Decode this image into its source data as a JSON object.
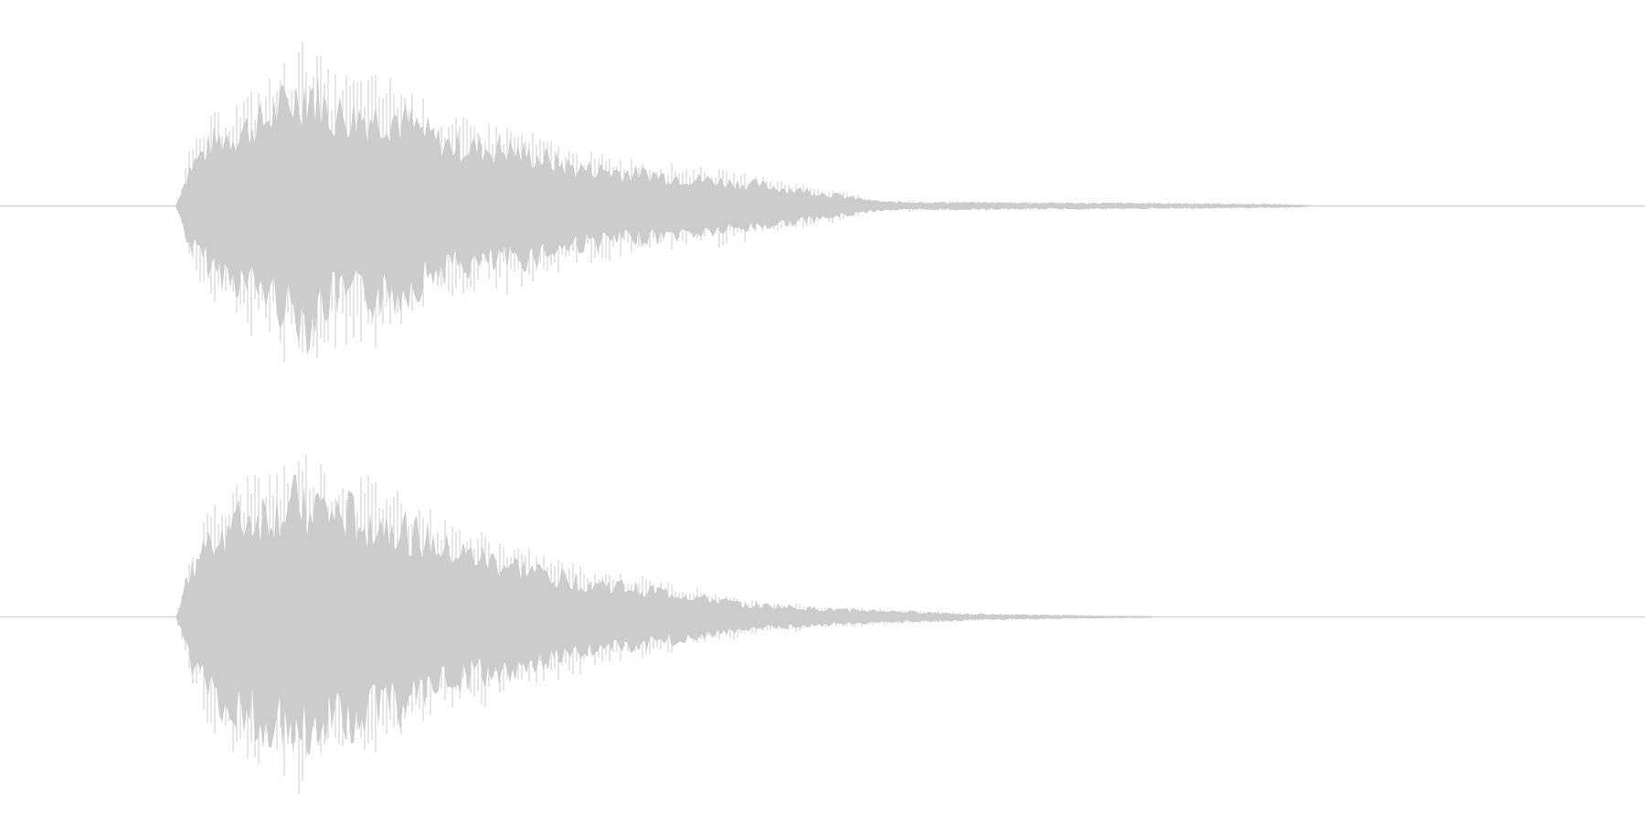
{
  "chart_data": {
    "type": "area",
    "title": "",
    "xlabel": "",
    "ylabel": "",
    "grid": false,
    "legend": "none",
    "colors": {
      "waveform": "#cccccc",
      "baseline": "#c8c8c8",
      "background": "#ffffff"
    },
    "x_range": [
      0,
      1
    ],
    "y_range": [
      -1,
      1
    ],
    "series": [
      {
        "channel": 1,
        "x": [
          0.0,
          0.107,
          0.115,
          0.13,
          0.16,
          0.188,
          0.2,
          0.24,
          0.27,
          0.31,
          0.35,
          0.4,
          0.45,
          0.5,
          0.53,
          0.54,
          0.6,
          0.7,
          0.78,
          0.81,
          1.0
        ],
        "y": [
          0.0,
          0.0,
          0.3,
          0.5,
          0.66,
          0.92,
          0.72,
          0.7,
          0.48,
          0.44,
          0.3,
          0.24,
          0.18,
          0.1,
          0.04,
          0.03,
          0.025,
          0.02,
          0.012,
          0.0,
          0.0
        ]
      },
      {
        "channel": 2,
        "x": [
          0.0,
          0.107,
          0.115,
          0.13,
          0.16,
          0.188,
          0.2,
          0.24,
          0.27,
          0.31,
          0.35,
          0.4,
          0.45,
          0.5,
          0.55,
          0.6,
          0.65,
          0.7,
          0.705,
          1.0
        ],
        "y": [
          0.0,
          0.0,
          0.32,
          0.66,
          0.8,
          0.9,
          0.8,
          0.72,
          0.52,
          0.4,
          0.28,
          0.2,
          0.1,
          0.06,
          0.04,
          0.02,
          0.012,
          0.006,
          0.0,
          0.0
        ]
      }
    ]
  }
}
